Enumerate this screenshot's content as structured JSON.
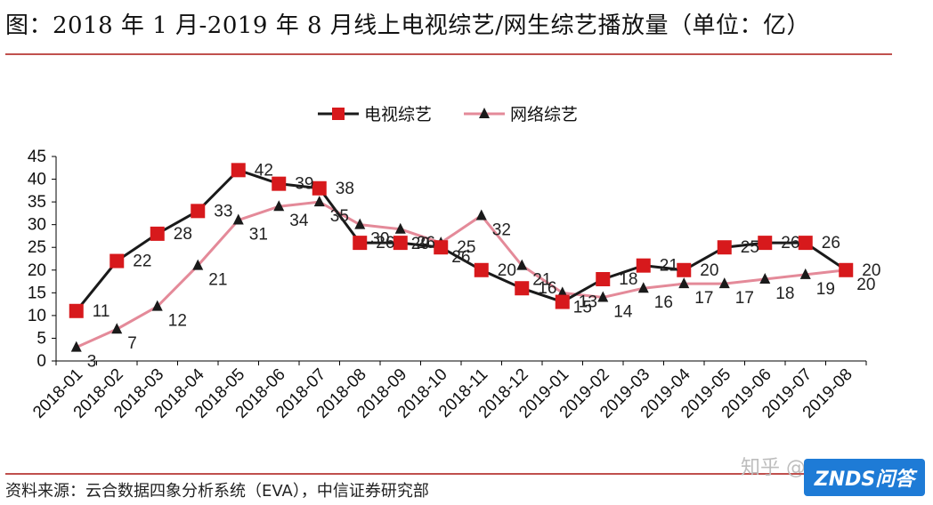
{
  "title": "图：2018 年 1 月-2019 年 8 月线上电视综艺/网生综艺播放量（单位：亿）",
  "source": "资料来源：云合数据四象分析系统（EVA），中信证券研究部",
  "watermark": {
    "text": "知乎 @",
    "badge": "ZNDS问答"
  },
  "colors": {
    "tv": "#1a1a1a",
    "tv_marker": "#d7191c",
    "web": "#e48a99",
    "web_marker": "#1a1a1a",
    "rule": "#c0504d"
  },
  "chart_data": {
    "type": "line",
    "categories": [
      "2018-01",
      "2018-02",
      "2018-03",
      "2018-04",
      "2018-05",
      "2018-06",
      "2018-07",
      "2018-08",
      "2018-09",
      "2018-10",
      "2018-11",
      "2018-12",
      "2019-01",
      "2019-02",
      "2019-03",
      "2019-04",
      "2019-05",
      "2019-06",
      "2019-07",
      "2019-08"
    ],
    "series": [
      {
        "name": "电视综艺",
        "values": [
          11,
          22,
          28,
          33,
          42,
          39,
          38,
          26,
          26,
          25,
          20,
          16,
          13,
          18,
          21,
          20,
          25,
          26,
          26,
          20
        ],
        "labels": [
          "11",
          "22",
          "28",
          "33",
          "42",
          "39",
          "38",
          "26",
          "26",
          "25",
          "20",
          "16",
          "13",
          "18",
          "21",
          "20",
          "25",
          "26",
          "26",
          "20"
        ]
      },
      {
        "name": "网络综艺",
        "values": [
          3,
          7,
          12,
          21,
          31,
          34,
          35,
          30,
          29,
          26,
          32,
          21,
          15,
          14,
          16,
          17,
          17,
          18,
          19,
          20
        ],
        "labels": [
          "3",
          "7",
          "12",
          "21",
          "31",
          "34",
          "35",
          "30",
          "29",
          "26",
          "32",
          "21",
          "15",
          "14",
          "16",
          "17",
          "17",
          "18",
          "19",
          "20"
        ]
      }
    ],
    "ylim": [
      0,
      45
    ],
    "yticks": [
      0,
      5,
      10,
      15,
      20,
      25,
      30,
      35,
      40,
      45
    ],
    "legend_position": "top-center",
    "grid": false
  }
}
